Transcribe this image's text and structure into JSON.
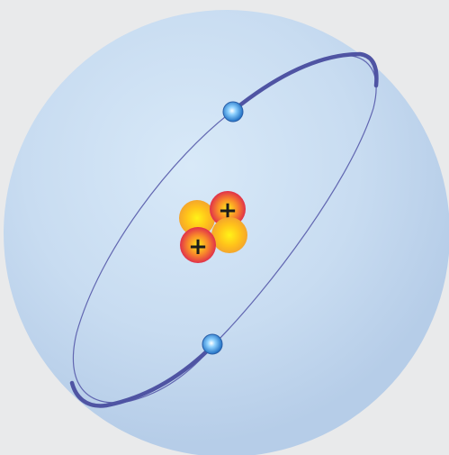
{
  "colors": {
    "page_background": "#e9eaeb",
    "electron_cloud_center": "#d6e6f6",
    "electron_cloud_edge": "#b8cfea",
    "orbit": "#5358a6",
    "electron": "#1f6fc3",
    "proton": "#e0304a",
    "neutron": "#ffc21a"
  },
  "atom": {
    "protons": [
      {
        "charge_symbol": "+"
      },
      {
        "charge_symbol": "+"
      }
    ],
    "neutron_count": 2,
    "electron_count": 2
  }
}
